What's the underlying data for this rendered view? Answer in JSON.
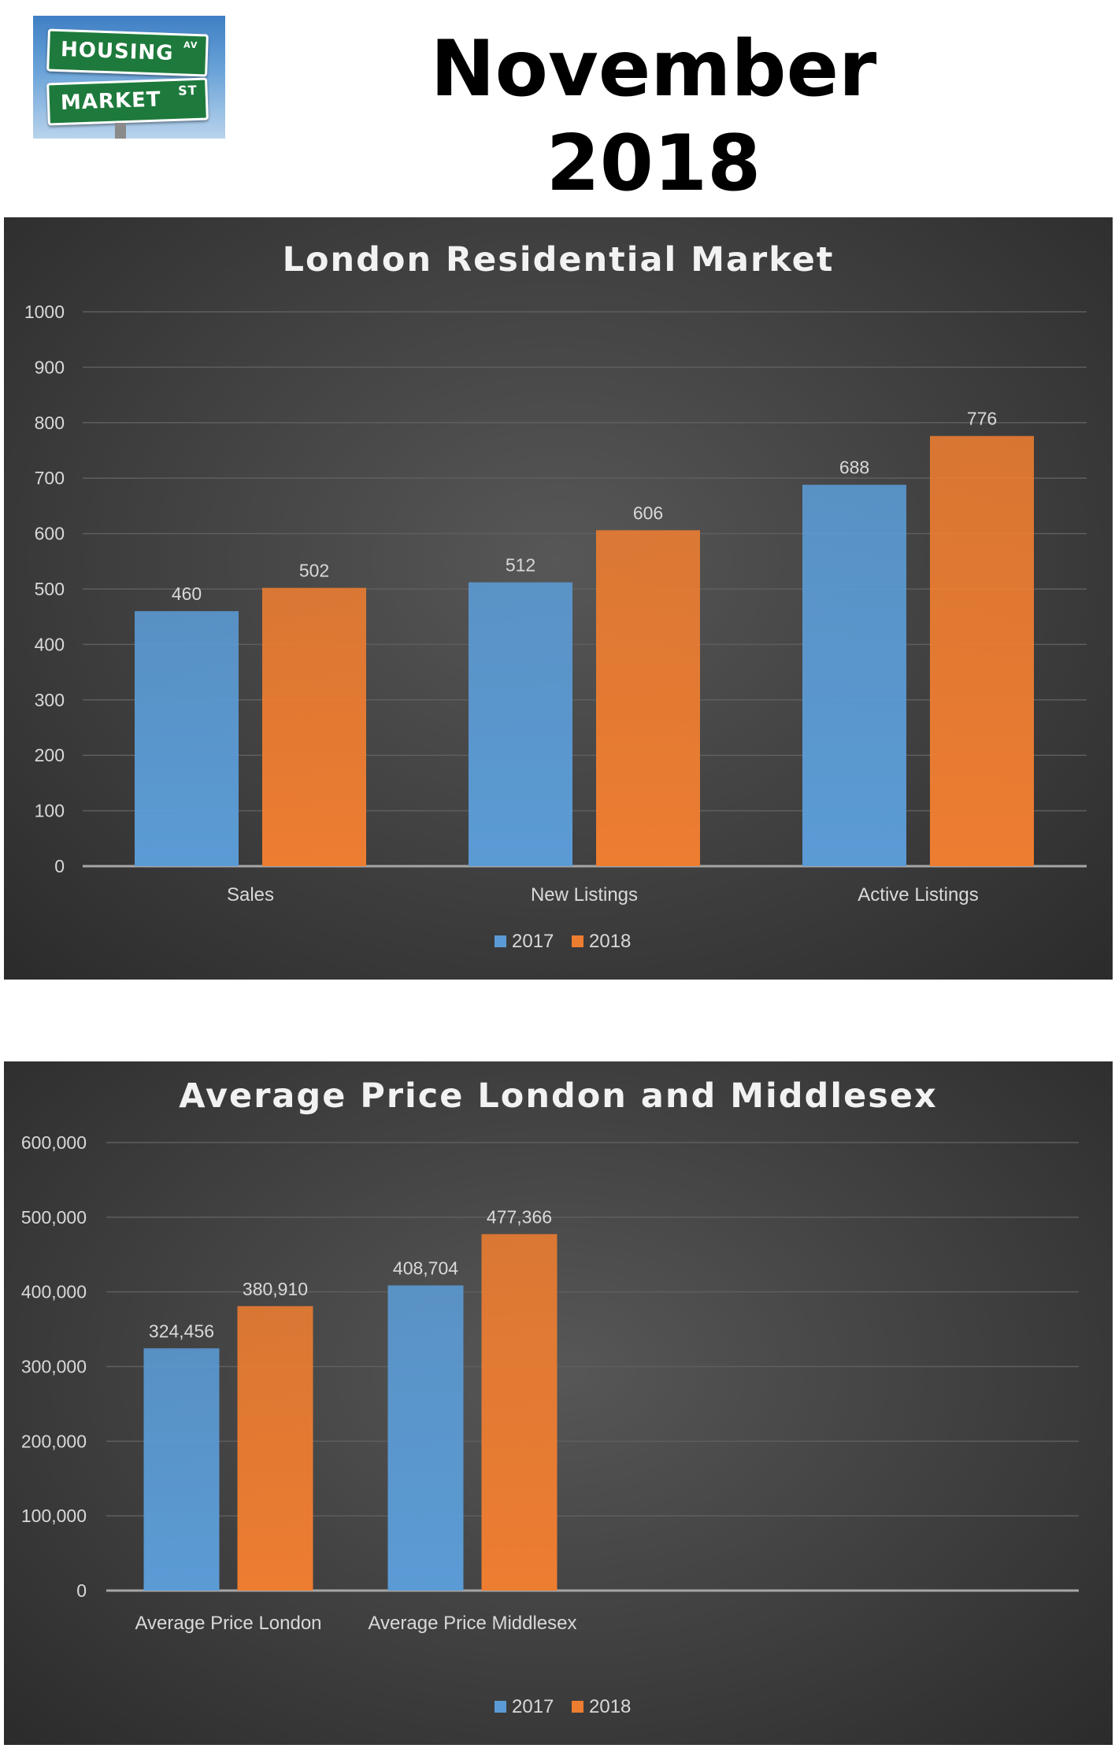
{
  "header": {
    "logo_text": {
      "line1": "HOUSING",
      "line1_abbr": "AV",
      "line2": "MARKET",
      "line2_abbr": "ST"
    },
    "title": "November 2018"
  },
  "colors": {
    "series_2017": "#5b9bd5",
    "series_2018": "#ed7d31",
    "panel_background": "#404040",
    "text": "#d9d9d9",
    "title_text": "#f2f2f2"
  },
  "chart_data": [
    {
      "type": "bar",
      "title": "London Residential Market",
      "categories": [
        "Sales",
        "New Listings",
        "Active Listings"
      ],
      "series": [
        {
          "name": "2017",
          "values": [
            460,
            512,
            688
          ],
          "labels": [
            "460",
            "512",
            "688"
          ]
        },
        {
          "name": "2018",
          "values": [
            502,
            606,
            776
          ],
          "labels": [
            "502",
            "606",
            "776"
          ]
        }
      ],
      "ylim": [
        0,
        1000
      ],
      "yticks": [
        0,
        100,
        200,
        300,
        400,
        500,
        600,
        700,
        800,
        900,
        1000
      ],
      "ytick_labels": [
        "0",
        "100",
        "200",
        "300",
        "400",
        "500",
        "600",
        "700",
        "800",
        "900",
        "1000"
      ],
      "grid": true,
      "legend": "bottom"
    },
    {
      "type": "bar",
      "title": "Average Price London and Middlesex",
      "categories": [
        "Average Price London",
        "Average Price Middlesex"
      ],
      "series": [
        {
          "name": "2017",
          "values": [
            324456,
            408704
          ],
          "labels": [
            "324,456",
            "408,704"
          ]
        },
        {
          "name": "2018",
          "values": [
            380910,
            477366
          ],
          "labels": [
            "380,910",
            "477,366"
          ]
        }
      ],
      "ylim": [
        0,
        600000
      ],
      "yticks": [
        0,
        100000,
        200000,
        300000,
        400000,
        500000,
        600000
      ],
      "ytick_labels": [
        "0",
        "100,000",
        "200,000",
        "300,000",
        "400,000",
        "500,000",
        "600,000"
      ],
      "grid": true,
      "legend": "bottom"
    }
  ]
}
